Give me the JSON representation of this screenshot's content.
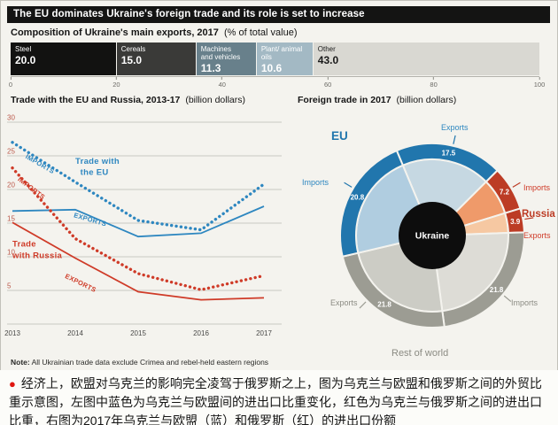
{
  "page": {
    "header": "The EU dominates Ukraine's foreign trade and its role is set to increase",
    "note_label": "Note:",
    "note_text": " All Ukrainian trade data exclude Crimea and rebel-held eastern regions",
    "caption_bullet": "●",
    "caption": "经济上，欧盟对乌克兰的影响完全凌驾于俄罗斯之上，图为乌克兰与欧盟和俄罗斯之间的外贸比重示意图，左图中蓝色为乌克兰与欧盟间的进出口比重变化，红色为乌克兰与俄罗斯之间的进出口比重，右图为2017年乌克兰与欧盟（蓝）和俄罗斯（红）的进出口份额"
  },
  "chart_data": [
    {
      "id": "export-composition",
      "type": "bar",
      "title": "Composition of Ukraine's main exports, 2017",
      "subtitle": "(% of total value)",
      "categories": [
        "Steel",
        "Cereals",
        "Machines and vehicles",
        "Plant/ animal oils",
        "Other"
      ],
      "values": [
        20.0,
        15.0,
        11.3,
        10.6,
        43.0
      ],
      "xlim": [
        0,
        100
      ],
      "axis_ticks": [
        0,
        20,
        40,
        60,
        80,
        100
      ],
      "colors": [
        "#121211",
        "#3a3a38",
        "#68808b",
        "#a3b9c4",
        "#d9d8d2"
      ],
      "text_colors": [
        "#ffffff",
        "#ffffff",
        "#ffffff",
        "#ffffff",
        "#1a1a1a"
      ]
    },
    {
      "id": "trade-lines",
      "type": "line",
      "title": "Trade with the EU and Russia, 2013-17",
      "subtitle": "(billion dollars)",
      "x": [
        2013,
        2014,
        2015,
        2016,
        2017
      ],
      "ylim": [
        0,
        30
      ],
      "yticks": [
        0,
        5,
        10,
        15,
        20,
        25,
        30
      ],
      "series": [
        {
          "name": "Trade with the EU - Imports",
          "color": "#2e87c0",
          "style": "dotted",
          "values": [
            27.0,
            21.1,
            15.4,
            14.0,
            20.8
          ]
        },
        {
          "name": "Trade with the EU - Exports",
          "color": "#2e87c0",
          "style": "solid",
          "values": [
            16.8,
            17.0,
            13.0,
            13.5,
            17.5
          ]
        },
        {
          "name": "Trade with Russia - Imports",
          "color": "#cf3b28",
          "style": "dotted",
          "values": [
            23.2,
            12.7,
            7.5,
            5.1,
            7.2
          ]
        },
        {
          "name": "Trade with Russia - Exports",
          "color": "#cf3b28",
          "style": "solid",
          "values": [
            15.1,
            9.8,
            4.8,
            3.6,
            3.9
          ]
        }
      ],
      "annotations": [
        {
          "text": "IMPORTS",
          "x": 2013.2,
          "y": 24.7,
          "color": "#2e87c0",
          "size": 7.5,
          "rotate": 30
        },
        {
          "text": "Trade with",
          "x": 2014.0,
          "y": 23.8,
          "color": "#2e87c0",
          "size": 9.5,
          "rotate": 0
        },
        {
          "text": "the EU",
          "x": 2014.08,
          "y": 22.2,
          "color": "#2e87c0",
          "size": 9.5,
          "rotate": 0
        },
        {
          "text": "EXPORTS",
          "x": 2013.97,
          "y": 15.9,
          "color": "#2e87c0",
          "size": 7.5,
          "rotate": 16
        },
        {
          "text": "IMPORTS",
          "x": 2013.08,
          "y": 21.4,
          "color": "#cf3b28",
          "size": 7.5,
          "rotate": 38
        },
        {
          "text": "Trade",
          "x": 2013.0,
          "y": 11.5,
          "color": "#cf3b28",
          "size": 9.5,
          "rotate": 0
        },
        {
          "text": "with Russia",
          "x": 2013.0,
          "y": 9.8,
          "color": "#cf3b28",
          "size": 9.5,
          "rotate": 0
        },
        {
          "text": "EXPORTS",
          "x": 2013.83,
          "y": 6.9,
          "color": "#cf3b28",
          "size": 7.5,
          "rotate": 26
        }
      ]
    },
    {
      "id": "foreign-trade-2017",
      "type": "pie",
      "title": "Foreign trade in 2017",
      "subtitle": "(billion dollars)",
      "center_label": "Ukraine",
      "start_angle_deg": -22.7,
      "segments": [
        {
          "group": "EU",
          "flow": "Exports",
          "value": 17.5,
          "inner": "#c6d8e2",
          "outer": "#2176ad"
        },
        {
          "group": "Russia",
          "flow": "Imports",
          "value": 7.2,
          "inner": "#ef9a6a",
          "outer": "#bc3c25"
        },
        {
          "group": "Russia",
          "flow": "Exports",
          "value": 3.9,
          "inner": "#f6c8a2",
          "outer": "#bc3c25"
        },
        {
          "group": "Rest of world",
          "flow": "Imports",
          "value": 21.8,
          "inner": "#dddcd6",
          "outer": "#9c9c93"
        },
        {
          "group": "Rest of world",
          "flow": "Exports",
          "value": 21.8,
          "inner": "#ccccc5",
          "outer": "#9c9c93"
        },
        {
          "group": "EU",
          "flow": "Imports",
          "value": 20.8,
          "inner": "#b0cde0",
          "outer": "#2176ad"
        }
      ],
      "ticks": [
        {
          "angle": 13,
          "color": "#2176ad"
        },
        {
          "angle": 59,
          "color": "#bc3c25"
        },
        {
          "angle": 80,
          "color": "#bc3c25"
        },
        {
          "angle": 130,
          "color": "#9c9c93"
        },
        {
          "angle": 225,
          "color": "#9c9c93"
        },
        {
          "angle": 301,
          "color": "#2176ad"
        }
      ],
      "callouts": {
        "eu": "EU",
        "eu_exports": "Exports",
        "eu_imports": "Imports",
        "russia": "Russia",
        "russia_imports": "Imports",
        "russia_exports": "Exports",
        "row": "Rest of world",
        "row_exports": "Exports",
        "row_imports": "Imports"
      }
    }
  ]
}
